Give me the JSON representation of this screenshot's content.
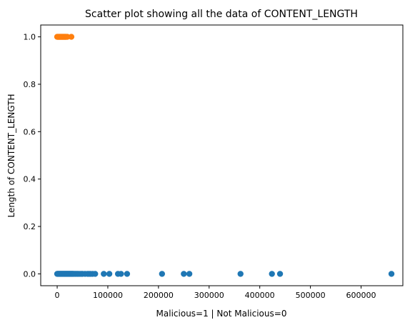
{
  "chart_data": {
    "type": "scatter",
    "title": "Scatter plot showing all the data of CONTENT_LENGTH",
    "xlabel": "Malicious=1 | Not Malicious=0",
    "ylabel": "Length of CONTENT_LENGTH",
    "xlim": [
      -32500,
      682500
    ],
    "ylim": [
      -0.05,
      1.05
    ],
    "x_ticks": [
      0,
      100000,
      200000,
      300000,
      400000,
      500000,
      600000
    ],
    "x_tick_labels": [
      "0",
      "100000",
      "200000",
      "300000",
      "400000",
      "500000",
      "600000"
    ],
    "y_ticks": [
      0.0,
      0.2,
      0.4,
      0.6,
      0.8,
      1.0
    ],
    "y_tick_labels": [
      "0.0",
      "0.2",
      "0.4",
      "0.6",
      "0.8",
      "1.0"
    ],
    "grid": false,
    "series": [
      {
        "color": "#1f77b4",
        "points": [
          [
            0,
            0
          ],
          [
            1000,
            0
          ],
          [
            2000,
            0
          ],
          [
            3000,
            0
          ],
          [
            4000,
            0
          ],
          [
            5000,
            0
          ],
          [
            6000,
            0
          ],
          [
            7000,
            0
          ],
          [
            8000,
            0
          ],
          [
            9000,
            0
          ],
          [
            10000,
            0
          ],
          [
            11000,
            0
          ],
          [
            12000,
            0
          ],
          [
            13000,
            0
          ],
          [
            14000,
            0
          ],
          [
            15000,
            0
          ],
          [
            16000,
            0
          ],
          [
            17000,
            0
          ],
          [
            18000,
            0
          ],
          [
            19000,
            0
          ],
          [
            20000,
            0
          ],
          [
            21000,
            0
          ],
          [
            22000,
            0
          ],
          [
            23000,
            0
          ],
          [
            24000,
            0
          ],
          [
            25000,
            0
          ],
          [
            26000,
            0
          ],
          [
            27000,
            0
          ],
          [
            28000,
            0
          ],
          [
            29000,
            0
          ],
          [
            30000,
            0
          ],
          [
            31000,
            0
          ],
          [
            32000,
            0
          ],
          [
            34000,
            0
          ],
          [
            36000,
            0
          ],
          [
            38000,
            0
          ],
          [
            40000,
            0
          ],
          [
            42000,
            0
          ],
          [
            45000,
            0
          ],
          [
            48000,
            0
          ],
          [
            50000,
            0
          ],
          [
            55000,
            0
          ],
          [
            60000,
            0
          ],
          [
            63000,
            0
          ],
          [
            66000,
            0
          ],
          [
            70000,
            0
          ],
          [
            75000,
            0
          ],
          [
            92000,
            0
          ],
          [
            103000,
            0
          ],
          [
            120000,
            0
          ],
          [
            126000,
            0
          ],
          [
            138000,
            0
          ],
          [
            207000,
            0
          ],
          [
            250000,
            0
          ],
          [
            261000,
            0
          ],
          [
            362000,
            0
          ],
          [
            424000,
            0
          ],
          [
            440000,
            0
          ],
          [
            660000,
            0
          ]
        ]
      },
      {
        "color": "#ff7f0e",
        "points": [
          [
            0,
            1
          ],
          [
            1000,
            1
          ],
          [
            2000,
            1
          ],
          [
            3000,
            1
          ],
          [
            4000,
            1
          ],
          [
            5000,
            1
          ],
          [
            6000,
            1
          ],
          [
            7000,
            1
          ],
          [
            8000,
            1
          ],
          [
            9000,
            1
          ],
          [
            10000,
            1
          ],
          [
            11000,
            1
          ],
          [
            12000,
            1
          ],
          [
            13000,
            1
          ],
          [
            14000,
            1
          ],
          [
            15000,
            1
          ],
          [
            16000,
            1
          ],
          [
            17000,
            1
          ],
          [
            18000,
            1
          ],
          [
            20000,
            1
          ],
          [
            28000,
            1
          ]
        ]
      }
    ]
  }
}
